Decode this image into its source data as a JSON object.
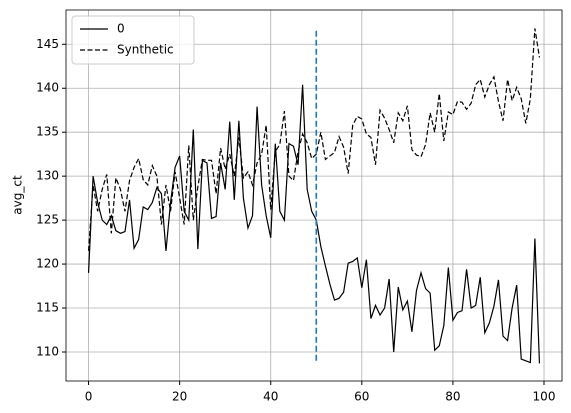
{
  "chart_data": {
    "type": "line",
    "ylabel": "avg_ct",
    "x": [
      0,
      1,
      2,
      3,
      4,
      5,
      6,
      7,
      8,
      9,
      10,
      11,
      12,
      13,
      14,
      15,
      16,
      17,
      18,
      19,
      20,
      21,
      22,
      23,
      24,
      25,
      26,
      27,
      28,
      29,
      30,
      31,
      32,
      33,
      34,
      35,
      36,
      37,
      38,
      39,
      40,
      41,
      42,
      43,
      44,
      45,
      46,
      47,
      48,
      49,
      50,
      51,
      52,
      53,
      54,
      55,
      56,
      57,
      58,
      59,
      60,
      61,
      62,
      63,
      64,
      65,
      66,
      67,
      68,
      69,
      70,
      71,
      72,
      73,
      74,
      75,
      76,
      77,
      78,
      79,
      80,
      81,
      82,
      83,
      84,
      85,
      86,
      87,
      88,
      89,
      90,
      91,
      92,
      93,
      94,
      95,
      96,
      97,
      98,
      99
    ],
    "series": [
      {
        "name": "0",
        "color": "#000000",
        "linestyle": "solid",
        "values": [
          119,
          130,
          127,
          125,
          124.5,
          125.5,
          123.8,
          123.5,
          123.7,
          127.3,
          121.8,
          122.8,
          126.5,
          126.2,
          127,
          128.7,
          128,
          121.5,
          127,
          131,
          132.3,
          126,
          125,
          135.3,
          121.7,
          131.8,
          131.5,
          125.2,
          125.4,
          131.5,
          128.5,
          136.2,
          127.3,
          136.3,
          127.5,
          124.1,
          125.5,
          137.9,
          129,
          125.5,
          123,
          133.7,
          126,
          125,
          133.7,
          133.4,
          131.3,
          140.4,
          128.5,
          126,
          125,
          122,
          119.8,
          117.7,
          115.9,
          116.1,
          116.8,
          120.1,
          120.3,
          120.7,
          117.3,
          120.5,
          113.8,
          115.3,
          114.2,
          115,
          118.3,
          110,
          117.4,
          114.8,
          115.8,
          112.3,
          117,
          119,
          117.2,
          116.7,
          110.2,
          110.7,
          113,
          119.6,
          113.6,
          114.5,
          114.7,
          119.4,
          115,
          115.3,
          118.5,
          112.2,
          113.3,
          115.2,
          118.2,
          111.8,
          111.3,
          115,
          117.6,
          109.2,
          109,
          108.8,
          122.9,
          108.7
        ]
      },
      {
        "name": "Synthetic",
        "color": "#000000",
        "linestyle": "dashed",
        "values": [
          121.5,
          129,
          126,
          128.5,
          130.2,
          123.5,
          129.8,
          128.5,
          126,
          129.5,
          131,
          132,
          129.6,
          129,
          131.2,
          130,
          124.5,
          129,
          126,
          130.5,
          127.5,
          124.5,
          133.5,
          125,
          128.8,
          131.9,
          131.8,
          131.8,
          128,
          133.2,
          130.8,
          132.5,
          130,
          134.4,
          129.8,
          130.5,
          129,
          131.5,
          132.5,
          135.8,
          126.2,
          132.8,
          133.6,
          137.4,
          130,
          129.5,
          132.8,
          134.8,
          133.8,
          132,
          132.5,
          135,
          131.9,
          132.3,
          132.7,
          134.5,
          133.3,
          130.3,
          135.8,
          136.8,
          136.5,
          134.8,
          134.4,
          131.3,
          137.5,
          136.6,
          135.3,
          133.8,
          137.2,
          136.3,
          138,
          133,
          132.4,
          132.2,
          133.6,
          137.2,
          135,
          139.4,
          134,
          137.3,
          137,
          138.5,
          138.4,
          137.6,
          138.3,
          140.4,
          141,
          139,
          140.4,
          141.3,
          138.5,
          136.3,
          141,
          138.6,
          140.1,
          138.8,
          136,
          138.8,
          146.8,
          143.5
        ]
      }
    ],
    "vline": {
      "x": 50,
      "ymin": 109,
      "ymax": 146.7,
      "color": "#1f77b4",
      "linestyle": "dashed"
    },
    "xlim": [
      -4.95,
      103.95
    ],
    "ylim": [
      106.7,
      148.9
    ],
    "xticks": [
      0,
      20,
      40,
      60,
      80,
      100
    ],
    "yticks": [
      110,
      115,
      120,
      125,
      130,
      135,
      140,
      145
    ],
    "grid": true,
    "legend": "upper left"
  }
}
